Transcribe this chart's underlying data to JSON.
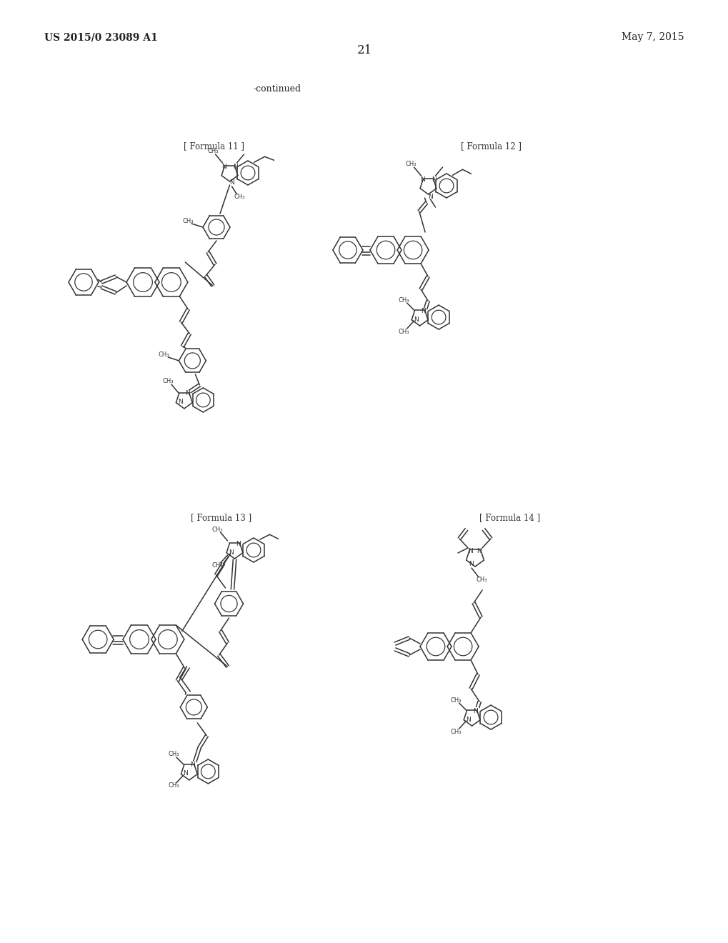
{
  "background_color": "#ffffff",
  "page_width": 10.2,
  "page_height": 13.2,
  "header_left": "US 2015/0 23089 A1",
  "header_right": "May 7, 2015",
  "page_number": "21",
  "continued_label": "-continued",
  "formula_labels": [
    "[ Formula 11 ]",
    "[ Formula 12 ]",
    "[ Formula 13 ]",
    "[ Formula 14 ]"
  ],
  "text_color": "#333333",
  "line_color": "#333333"
}
